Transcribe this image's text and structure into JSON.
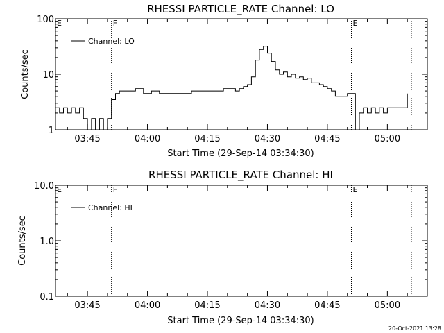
{
  "chart_data": [
    {
      "type": "line",
      "title": "RHESSI PARTICLE_RATE Channel: LO",
      "xlabel": "Start Time (29-Sep-14 03:34:30)",
      "ylabel": "Counts/sec",
      "yscale": "log",
      "ylim": [
        1,
        100
      ],
      "xlim": [
        "03:37",
        "05:10"
      ],
      "x_ticks": [
        "03:45",
        "04:00",
        "04:15",
        "04:30",
        "04:45",
        "05:00"
      ],
      "y_ticks": [
        "1",
        "10",
        "100"
      ],
      "legend": {
        "entries": [
          "Channel: LO"
        ],
        "placement": "top-left"
      },
      "markers": [
        {
          "label": "E",
          "time": "03:37"
        },
        {
          "label": "F",
          "time": "03:51"
        },
        {
          "label": "E",
          "time": "04:51"
        },
        {
          "label": "",
          "time": "05:06"
        }
      ],
      "series": [
        {
          "name": "Channel: LO",
          "x": [
            "03:37",
            "03:38",
            "03:39",
            "03:40",
            "03:41",
            "03:42",
            "03:43",
            "03:44",
            "03:45",
            "03:46",
            "03:47",
            "03:48",
            "03:49",
            "03:50",
            "03:51",
            "03:52",
            "03:53",
            "03:55",
            "03:57",
            "03:59",
            "04:01",
            "04:03",
            "04:05",
            "04:07",
            "04:09",
            "04:11",
            "04:13",
            "04:15",
            "04:17",
            "04:19",
            "04:21",
            "04:22",
            "04:23",
            "04:24",
            "04:25",
            "04:26",
            "04:27",
            "04:28",
            "04:29",
            "04:30",
            "04:31",
            "04:32",
            "04:33",
            "04:34",
            "04:35",
            "04:36",
            "04:37",
            "04:38",
            "04:39",
            "04:40",
            "04:41",
            "04:42",
            "04:43",
            "04:44",
            "04:45",
            "04:46",
            "04:47",
            "04:48",
            "04:49",
            "04:50",
            "04:51",
            "04:52",
            "04:53",
            "04:54",
            "04:55",
            "04:56",
            "04:57",
            "04:58",
            "04:59",
            "05:00",
            "05:01",
            "05:02",
            "05:03",
            "05:04",
            "05:05"
          ],
          "y": [
            2.5,
            2,
            2.5,
            2,
            2.5,
            2,
            2.5,
            1.6,
            1,
            1.6,
            1,
            1.6,
            1,
            1.6,
            3.5,
            4.5,
            5,
            5,
            5.5,
            4.5,
            5,
            4.5,
            4.5,
            4.5,
            4.5,
            5,
            5,
            5,
            5,
            5.5,
            5.5,
            5,
            5.5,
            6,
            6.5,
            9,
            18,
            28,
            32,
            24,
            17,
            12,
            10,
            11,
            9,
            10,
            8.5,
            9,
            8,
            8.5,
            7,
            7,
            6.5,
            6,
            5.5,
            5,
            4,
            4,
            4,
            4.5,
            4.5,
            1,
            2,
            2.5,
            2,
            2.5,
            2,
            2.5,
            2,
            2.5,
            2.5,
            2.5,
            2.5,
            2.5,
            4.5
          ]
        }
      ]
    },
    {
      "type": "line",
      "title": "RHESSI PARTICLE_RATE Channel: HI",
      "xlabel": "Start Time (29-Sep-14 03:34:30)",
      "ylabel": "Counts/sec",
      "yscale": "log",
      "ylim": [
        0.1,
        10
      ],
      "xlim": [
        "03:37",
        "05:10"
      ],
      "x_ticks": [
        "03:45",
        "04:00",
        "04:15",
        "04:30",
        "04:45",
        "05:00"
      ],
      "y_ticks": [
        "0.1",
        "1.0",
        "10.0"
      ],
      "legend": {
        "entries": [
          "Channel: HI"
        ],
        "placement": "top-left"
      },
      "markers": [
        {
          "label": "E",
          "time": "03:37"
        },
        {
          "label": "F",
          "time": "03:51"
        },
        {
          "label": "E",
          "time": "04:51"
        },
        {
          "label": "",
          "time": "05:06"
        }
      ],
      "series": [
        {
          "name": "Channel: HI",
          "x": [],
          "y": []
        }
      ]
    }
  ],
  "timestamp": "20-Oct-2021 13:28"
}
